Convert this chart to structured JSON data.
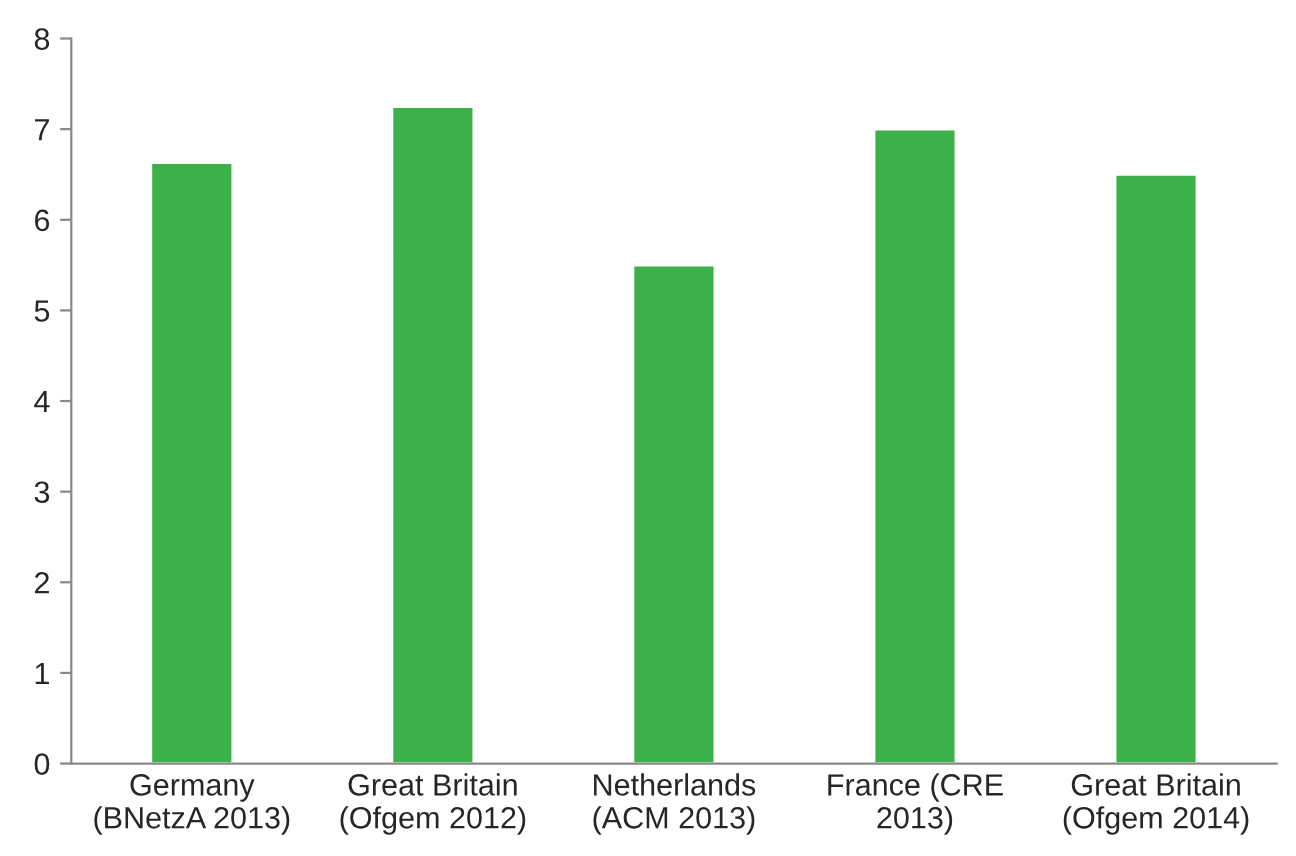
{
  "chart_data": {
    "type": "bar",
    "categories": [
      "Germany\n(BNetzA 2013)",
      "Great Britain\n(Ofgem 2012)",
      "Netherlands\n(ACM 2013)",
      "France (CRE\n2013)",
      "Great Britain\n(Ofgem 2014)"
    ],
    "values": [
      6.63,
      7.25,
      5.5,
      7.0,
      6.5
    ],
    "color": "#3db149",
    "ylim": [
      0,
      8
    ],
    "yticks": [
      0,
      1,
      2,
      3,
      4,
      5,
      6,
      7,
      8
    ],
    "grid": false,
    "legend": false
  }
}
